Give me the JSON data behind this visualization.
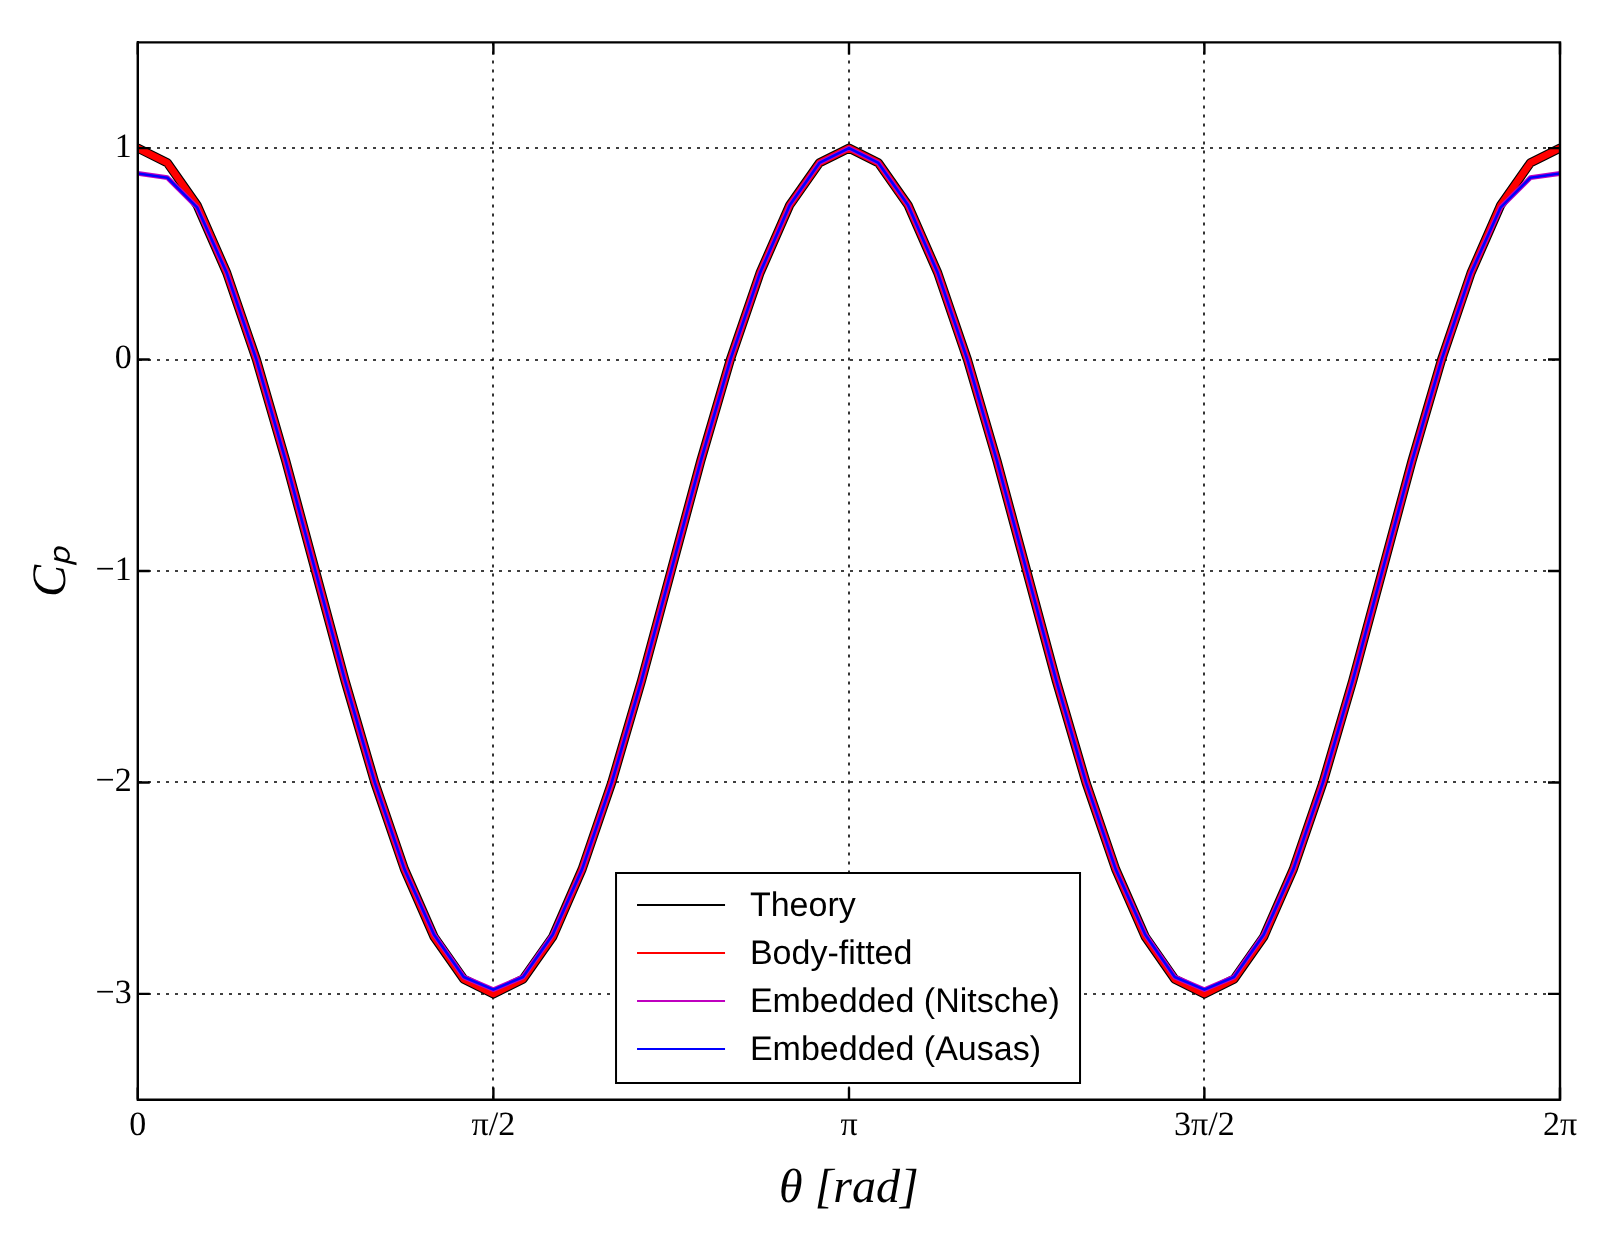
{
  "chart_data": {
    "type": "line",
    "xlabel": "θ [rad]",
    "ylabel": "Cₚ",
    "x": [
      0,
      0.131,
      0.262,
      0.393,
      0.524,
      0.654,
      0.785,
      0.916,
      1.047,
      1.178,
      1.309,
      1.44,
      1.571,
      1.702,
      1.833,
      1.963,
      2.094,
      2.225,
      2.356,
      2.487,
      2.618,
      2.749,
      2.88,
      3.011,
      3.142,
      3.272,
      3.403,
      3.534,
      3.665,
      3.796,
      3.927,
      4.058,
      4.189,
      4.32,
      4.451,
      4.581,
      4.712,
      4.843,
      4.974,
      5.105,
      5.236,
      5.367,
      5.498,
      5.629,
      5.76,
      5.89,
      6.021,
      6.152,
      6.283
    ],
    "series": [
      {
        "name": "Theory",
        "color": "#000000",
        "values": [
          1,
          0.93,
          0.73,
          0.41,
          0,
          -0.48,
          -1,
          -1.52,
          -2,
          -2.41,
          -2.73,
          -2.93,
          -3,
          -2.93,
          -2.73,
          -2.41,
          -2,
          -1.52,
          -1,
          -0.48,
          0,
          0.41,
          0.73,
          0.93,
          1,
          0.93,
          0.73,
          0.41,
          0,
          -0.48,
          -1,
          -1.52,
          -2,
          -2.41,
          -2.73,
          -2.93,
          -3,
          -2.93,
          -2.73,
          -2.41,
          -2,
          -1.52,
          -1,
          -0.48,
          0,
          0.41,
          0.73,
          0.93,
          1
        ]
      },
      {
        "name": "Body-fitted",
        "color": "#ff0000",
        "values": [
          1,
          0.93,
          0.73,
          0.41,
          0,
          -0.48,
          -1,
          -1.52,
          -2,
          -2.41,
          -2.73,
          -2.93,
          -3,
          -2.93,
          -2.73,
          -2.41,
          -2,
          -1.52,
          -1,
          -0.48,
          0,
          0.41,
          0.73,
          0.93,
          1,
          0.93,
          0.73,
          0.41,
          0,
          -0.48,
          -1,
          -1.52,
          -2,
          -2.41,
          -2.73,
          -2.93,
          -3,
          -2.93,
          -2.73,
          -2.41,
          -2,
          -1.52,
          -1,
          -0.48,
          0,
          0.41,
          0.73,
          0.93,
          1
        ]
      },
      {
        "name": "Embedded (Nitsche)",
        "color": "#bf00bf",
        "values": [
          0.88,
          0.86,
          0.72,
          0.41,
          0,
          -0.48,
          -1,
          -1.52,
          -2,
          -2.41,
          -2.72,
          -2.92,
          -2.98,
          -2.92,
          -2.72,
          -2.41,
          -2,
          -1.52,
          -1,
          -0.48,
          0,
          0.41,
          0.73,
          0.93,
          1,
          0.93,
          0.73,
          0.41,
          0,
          -0.48,
          -1,
          -1.52,
          -2,
          -2.41,
          -2.72,
          -2.92,
          -2.98,
          -2.92,
          -2.72,
          -2.41,
          -2,
          -1.52,
          -1,
          -0.48,
          0,
          0.41,
          0.72,
          0.86,
          0.88
        ]
      },
      {
        "name": "Embedded (Ausas)",
        "color": "#0000ff",
        "values": [
          0.88,
          0.86,
          0.72,
          0.41,
          0,
          -0.48,
          -1,
          -1.52,
          -2,
          -2.41,
          -2.72,
          -2.92,
          -2.98,
          -2.92,
          -2.72,
          -2.41,
          -2,
          -1.52,
          -1,
          -0.48,
          0,
          0.41,
          0.73,
          0.93,
          1,
          0.93,
          0.73,
          0.41,
          0,
          -0.48,
          -1,
          -1.52,
          -2,
          -2.41,
          -2.72,
          -2.92,
          -2.98,
          -2.92,
          -2.72,
          -2.41,
          -2,
          -1.52,
          -1,
          -0.48,
          0,
          0.41,
          0.72,
          0.86,
          0.88
        ]
      }
    ],
    "xlim": [
      0,
      6.283
    ],
    "xticks": [
      0,
      {
        "value": 1.571,
        "label": "π/2"
      },
      {
        "value": 3.142,
        "label": "π"
      },
      {
        "value": 4.712,
        "label": "3π/2"
      },
      {
        "value": 6.283,
        "label": "2π"
      }
    ],
    "ylim": [
      -3.5,
      1.5
    ],
    "yticks": [
      {
        "value": -3,
        "label": "−3"
      },
      {
        "value": -2,
        "label": "−2"
      },
      {
        "value": -1,
        "label": "−1"
      },
      0,
      1
    ],
    "grid": true,
    "legend": "bottom",
    "marker": "none",
    "line_style": "solid"
  }
}
